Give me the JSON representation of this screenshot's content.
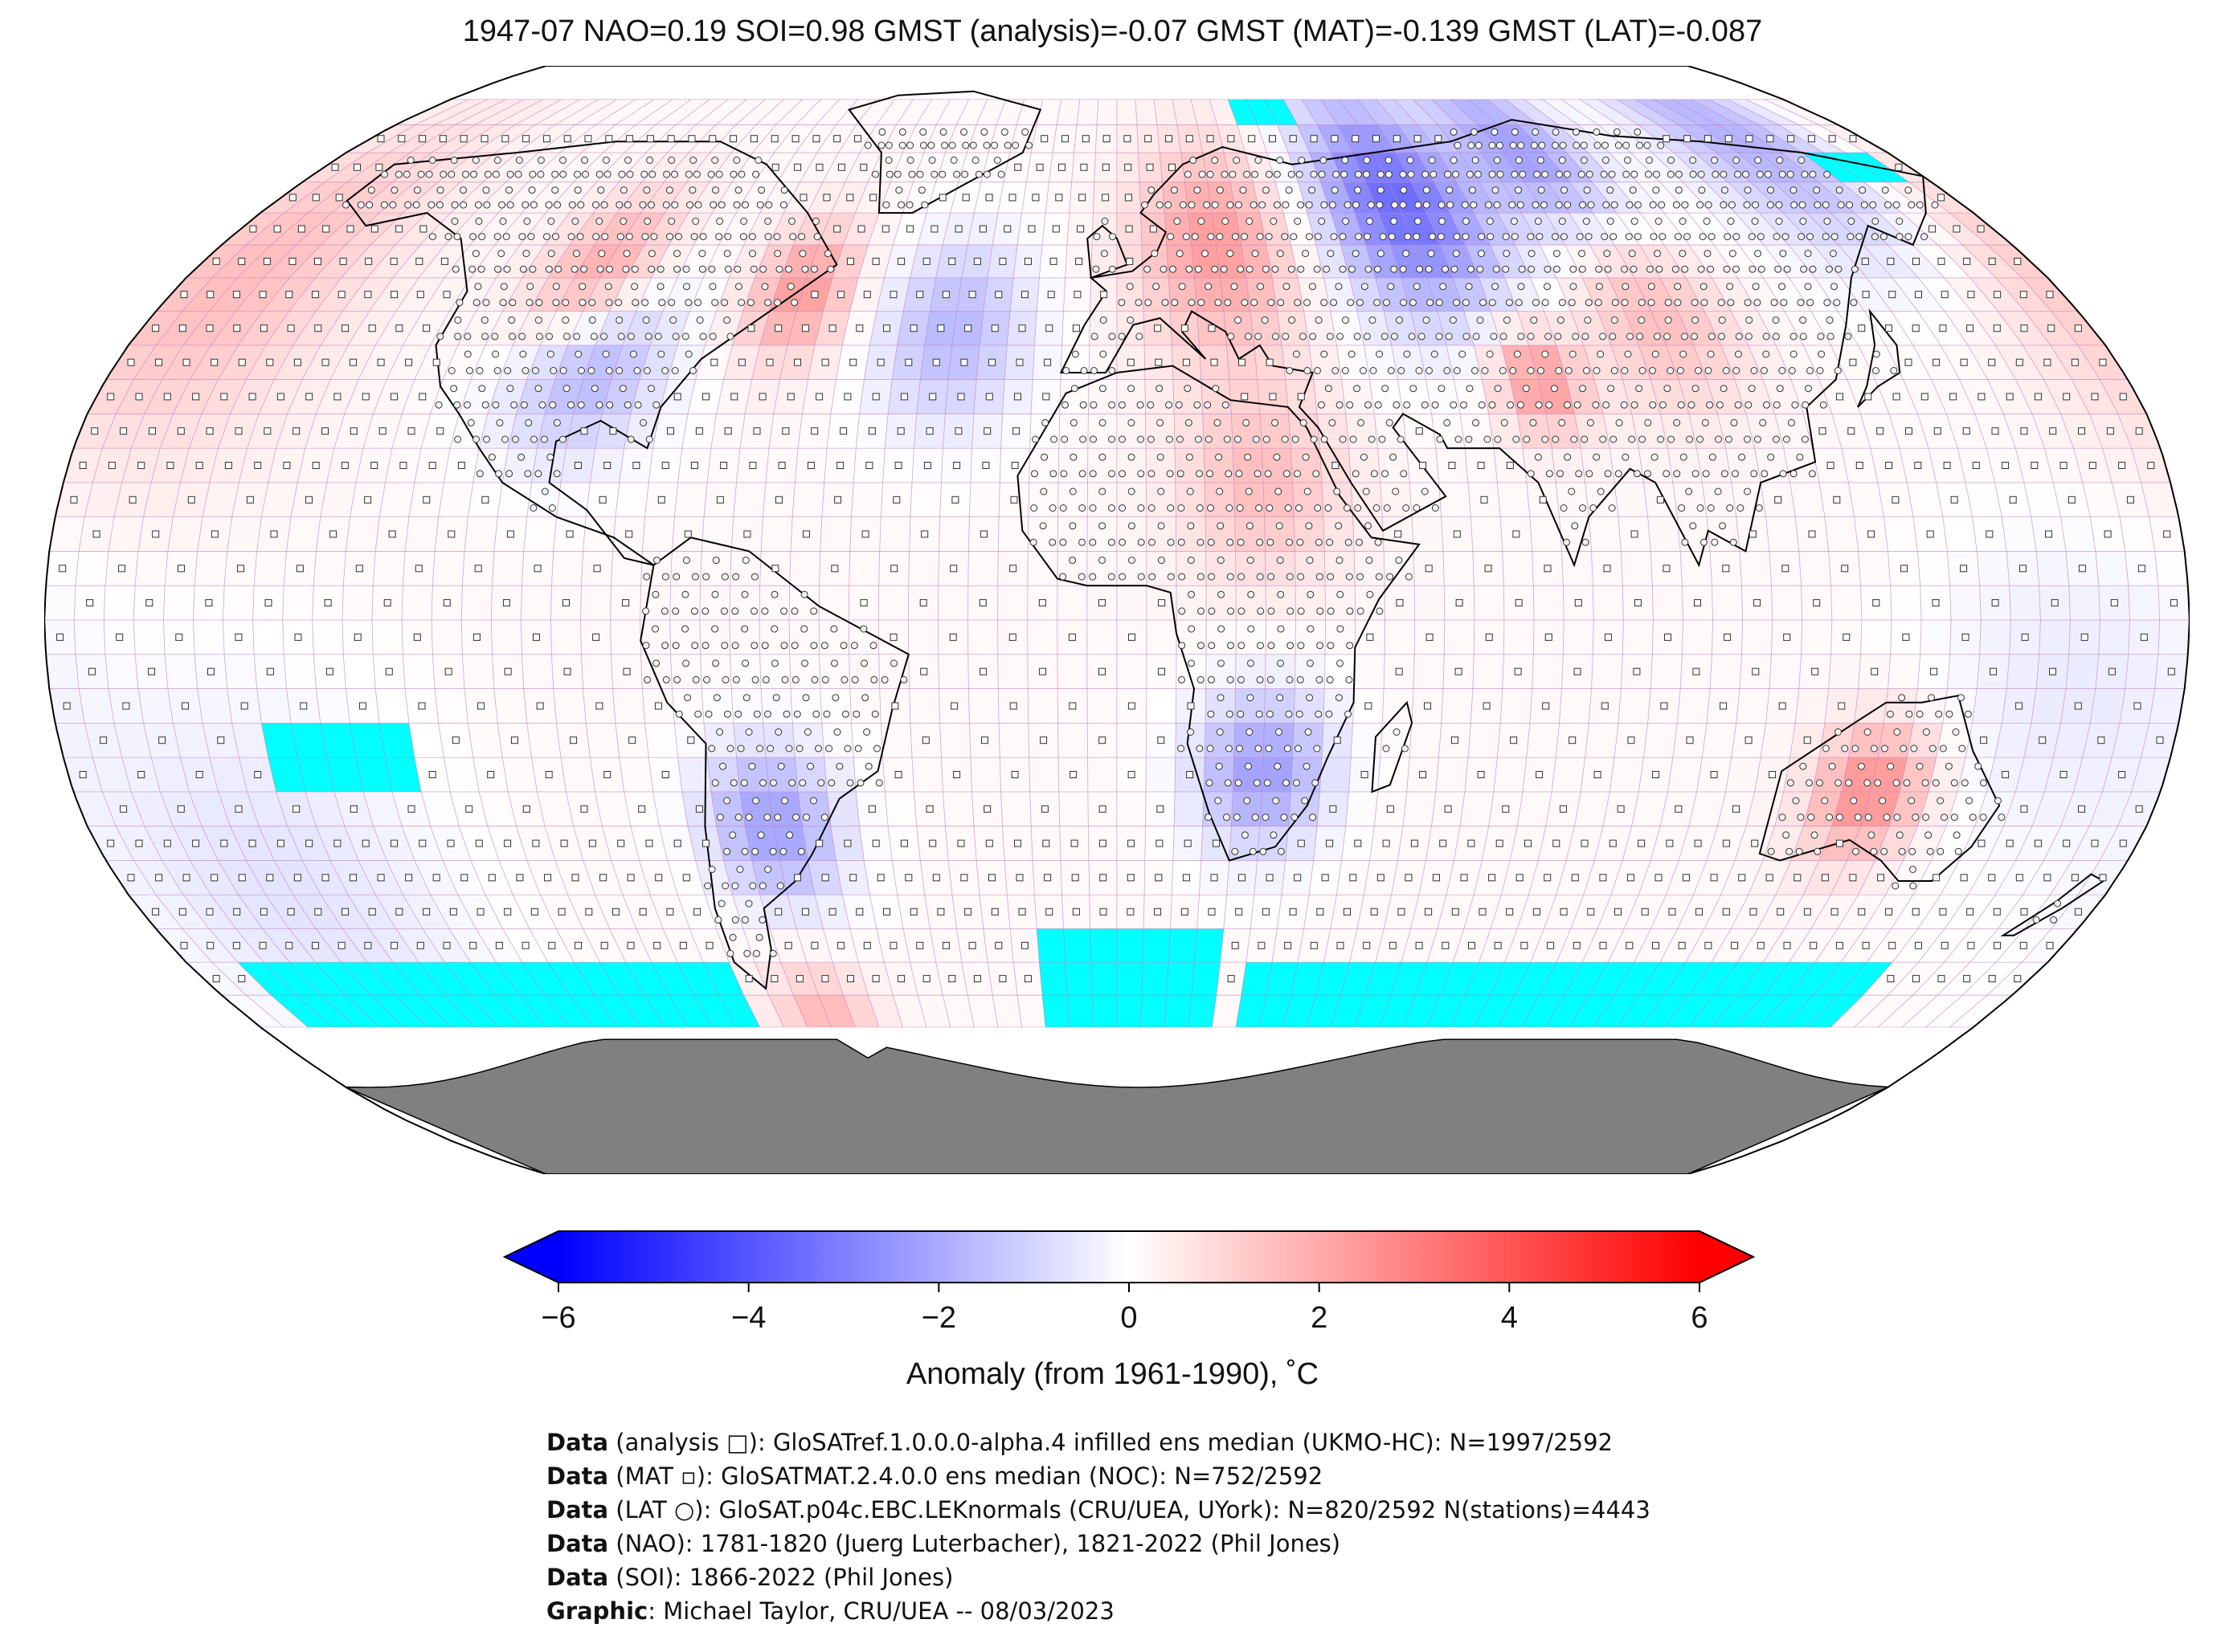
{
  "title": "1947-07 NAO=0.19 SOI=0.98 GMST (analysis)=-0.07 GMST (MAT)=-0.139 GMST (LAT)=-0.087",
  "map": {
    "projection": "Robinson",
    "grid": "5x5 degree",
    "colors": {
      "cold": "#0000ff",
      "neutral": "#ffffff",
      "warm": "#ff0000",
      "sea_ice": "#00ffff",
      "land_mask": "#808080",
      "grid_line": "#c080c0"
    },
    "symbols": [
      "analysis-square-marker",
      "mat-square-marker",
      "lat-station-circle"
    ]
  },
  "colorbar": {
    "min": -6,
    "max": 6,
    "ticks": [
      "−6",
      "−4",
      "−2",
      "0",
      "2",
      "4",
      "6"
    ],
    "label": "Anomaly (from 1961-1990), ˚C",
    "extend": "both"
  },
  "credits": [
    {
      "key": "Data",
      "text": " (analysis □): GloSATref.1.0.0.0-alpha.4 infilled ens median (UKMO-HC): N=1997/2592"
    },
    {
      "key": "Data",
      "text": " (MAT ▫): GloSATMAT.2.4.0.0 ens median (NOC): N=752/2592"
    },
    {
      "key": "Data",
      "text": " (LAT ○): GloSAT.p04c.EBC.LEKnormals (CRU/UEA, UYork): N=820/2592 N(stations)=4443"
    },
    {
      "key": "Data",
      "text": " (NAO): 1781-1820 (Juerg Luterbacher), 1821-2022 (Phil Jones)"
    },
    {
      "key": "Data",
      "text": " (SOI): 1866-2022 (Phil Jones)"
    },
    {
      "key": "Graphic",
      "text": ": Michael Taylor, CRU/UEA -- 08/03/2023"
    }
  ]
}
